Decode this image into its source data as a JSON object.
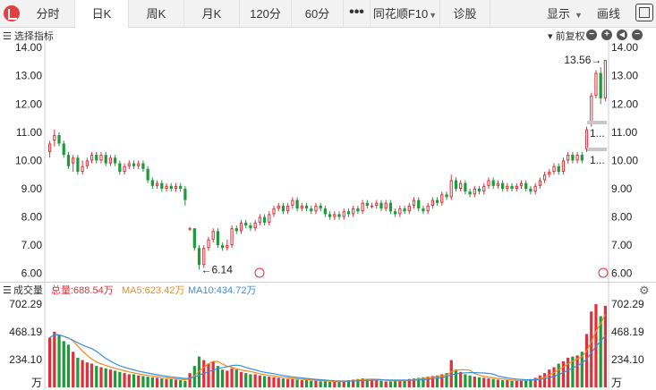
{
  "tabs": [
    {
      "label": "分时"
    },
    {
      "label": "日K"
    },
    {
      "label": "周K"
    },
    {
      "label": "月K"
    },
    {
      "label": "120分"
    },
    {
      "label": "60分"
    }
  ],
  "toolbar": {
    "more_label": "•••",
    "plugin_label": "同花顺F10",
    "diagnose_label": "诊股",
    "display_label": "显示",
    "draw_label": "画线"
  },
  "indicator_bar": {
    "select_label": "选择指标",
    "adjust_label": "前复权"
  },
  "volume_bar": {
    "title": "成交量",
    "total": "总量:688.54万",
    "ma5": "MA5:623.42万",
    "ma10": "MA10:434.72万"
  },
  "colors": {
    "up": "#e0303a",
    "down": "#1e9a3a",
    "ma5": "#f08a1c",
    "ma10": "#3a8fd8"
  },
  "chart_data": {
    "type": "candlestick",
    "price_axis": {
      "ticks": [
        "14.00",
        "13.00",
        "12.00",
        "11.00",
        "10.00",
        "9.00",
        "8.00",
        "7.00",
        "6.00"
      ],
      "ylim": [
        5.8,
        14.1
      ]
    },
    "volume_axis": {
      "ticks": [
        "702.29",
        "468.19",
        "234.10"
      ],
      "unit": "万"
    },
    "annotations": {
      "high_label": "13.56→",
      "low_label": "←6.14",
      "marker_label": "1..."
    },
    "candles": [
      [
        10.3,
        10.6,
        10.1,
        10.7
      ],
      [
        10.7,
        10.9,
        10.5,
        11.1
      ],
      [
        10.9,
        10.6,
        10.5,
        11.0
      ],
      [
        10.6,
        10.2,
        10.1,
        10.7
      ],
      [
        10.2,
        9.8,
        9.7,
        10.3
      ],
      [
        9.9,
        10.1,
        9.6,
        10.2
      ],
      [
        10.1,
        9.6,
        9.5,
        10.2
      ],
      [
        9.6,
        9.8,
        9.5,
        10.0
      ],
      [
        9.8,
        10.0,
        9.7,
        10.1
      ],
      [
        10.0,
        10.2,
        9.9,
        10.3
      ],
      [
        10.2,
        10.0,
        9.9,
        10.3
      ],
      [
        10.0,
        10.2,
        9.9,
        10.3
      ],
      [
        10.2,
        9.9,
        9.8,
        10.3
      ],
      [
        9.9,
        10.1,
        9.8,
        10.2
      ],
      [
        10.1,
        9.9,
        9.8,
        10.2
      ],
      [
        9.9,
        9.6,
        9.5,
        10.0
      ],
      [
        9.6,
        9.8,
        9.5,
        9.9
      ],
      [
        9.8,
        9.9,
        9.7,
        10.0
      ],
      [
        9.9,
        9.8,
        9.7,
        10.0
      ],
      [
        9.8,
        9.9,
        9.7,
        10.0
      ],
      [
        9.9,
        9.7,
        9.6,
        10.0
      ],
      [
        9.7,
        9.3,
        9.2,
        9.8
      ],
      [
        9.3,
        9.1,
        9.0,
        9.4
      ],
      [
        9.1,
        9.2,
        9.0,
        9.3
      ],
      [
        9.2,
        9.0,
        8.9,
        9.3
      ],
      [
        9.0,
        9.1,
        8.9,
        9.2
      ],
      [
        9.1,
        9.0,
        8.9,
        9.2
      ],
      [
        9.0,
        9.1,
        8.9,
        9.2
      ],
      [
        9.1,
        9.0,
        8.9,
        9.2
      ],
      [
        9.0,
        8.6,
        8.4,
        9.1
      ],
      [
        7.6,
        7.6,
        7.5,
        7.65
      ],
      [
        7.6,
        6.9,
        6.8,
        7.6
      ],
      [
        6.9,
        6.3,
        6.14,
        7.0
      ],
      [
        6.3,
        6.9,
        6.2,
        7.0
      ],
      [
        6.9,
        7.2,
        6.8,
        7.3
      ],
      [
        7.2,
        7.5,
        7.1,
        7.6
      ],
      [
        7.5,
        7.0,
        6.9,
        7.6
      ],
      [
        7.0,
        6.9,
        6.8,
        7.1
      ],
      [
        6.9,
        7.0,
        6.8,
        7.2
      ],
      [
        7.0,
        7.6,
        6.9,
        7.7
      ],
      [
        7.6,
        7.5,
        7.4,
        7.7
      ],
      [
        7.5,
        7.8,
        7.4,
        7.9
      ],
      [
        7.8,
        7.7,
        7.6,
        7.9
      ],
      [
        7.7,
        7.6,
        7.5,
        7.8
      ],
      [
        7.6,
        7.8,
        7.5,
        7.9
      ],
      [
        7.8,
        8.0,
        7.7,
        8.1
      ],
      [
        8.0,
        7.8,
        7.7,
        8.1
      ],
      [
        7.8,
        8.1,
        7.7,
        8.2
      ],
      [
        8.1,
        8.3,
        8.0,
        8.4
      ],
      [
        8.3,
        8.4,
        8.2,
        8.5
      ],
      [
        8.4,
        8.2,
        8.1,
        8.5
      ],
      [
        8.2,
        8.4,
        8.1,
        8.5
      ],
      [
        8.4,
        8.6,
        8.3,
        8.7
      ],
      [
        8.6,
        8.3,
        8.2,
        8.7
      ],
      [
        8.3,
        8.4,
        8.2,
        8.5
      ],
      [
        8.4,
        8.3,
        8.2,
        8.5
      ],
      [
        8.3,
        8.2,
        8.1,
        8.4
      ],
      [
        8.2,
        8.4,
        8.1,
        8.5
      ],
      [
        8.4,
        8.3,
        8.2,
        8.5
      ],
      [
        8.3,
        8.1,
        8.0,
        8.4
      ],
      [
        8.1,
        8.0,
        7.9,
        8.2
      ],
      [
        8.0,
        8.1,
        7.9,
        8.2
      ],
      [
        8.1,
        8.0,
        7.9,
        8.2
      ],
      [
        8.0,
        8.2,
        7.9,
        8.3
      ],
      [
        8.2,
        8.1,
        8.0,
        8.3
      ],
      [
        8.1,
        8.3,
        8.0,
        8.4
      ],
      [
        8.3,
        8.2,
        8.1,
        8.4
      ],
      [
        8.2,
        8.5,
        8.1,
        8.6
      ],
      [
        8.5,
        8.4,
        8.3,
        8.6
      ],
      [
        8.4,
        8.4,
        8.3,
        8.5
      ],
      [
        8.4,
        8.5,
        8.3,
        8.6
      ],
      [
        8.5,
        8.3,
        8.2,
        8.6
      ],
      [
        8.3,
        8.5,
        8.2,
        8.6
      ],
      [
        8.5,
        8.2,
        8.1,
        8.6
      ],
      [
        8.2,
        8.1,
        8.0,
        8.3
      ],
      [
        8.1,
        8.3,
        8.0,
        8.4
      ],
      [
        8.3,
        8.2,
        8.1,
        8.4
      ],
      [
        8.2,
        8.4,
        8.1,
        8.5
      ],
      [
        8.4,
        8.6,
        8.3,
        8.7
      ],
      [
        8.6,
        8.3,
        8.2,
        8.7
      ],
      [
        8.3,
        8.2,
        8.1,
        8.4
      ],
      [
        8.2,
        8.4,
        8.1,
        8.5
      ],
      [
        8.4,
        8.6,
        8.3,
        8.7
      ],
      [
        8.6,
        8.5,
        8.4,
        8.7
      ],
      [
        8.5,
        8.8,
        8.4,
        8.9
      ],
      [
        8.8,
        8.7,
        8.6,
        8.9
      ],
      [
        8.7,
        9.3,
        8.6,
        9.5
      ],
      [
        9.3,
        9.0,
        8.9,
        9.4
      ],
      [
        9.0,
        9.2,
        8.9,
        9.3
      ],
      [
        9.2,
        8.9,
        8.8,
        9.3
      ],
      [
        8.9,
        8.8,
        8.7,
        9.0
      ],
      [
        8.8,
        9.0,
        8.7,
        9.1
      ],
      [
        9.0,
        8.9,
        8.8,
        9.1
      ],
      [
        8.9,
        9.1,
        8.8,
        9.2
      ],
      [
        9.1,
        9.3,
        9.0,
        9.4
      ],
      [
        9.3,
        9.1,
        9.0,
        9.4
      ],
      [
        9.1,
        9.2,
        9.0,
        9.3
      ],
      [
        9.2,
        9.0,
        8.9,
        9.3
      ],
      [
        9.0,
        9.1,
        8.9,
        9.2
      ],
      [
        9.1,
        9.0,
        8.9,
        9.2
      ],
      [
        9.0,
        9.1,
        8.9,
        9.2
      ],
      [
        9.1,
        9.2,
        9.0,
        9.3
      ],
      [
        9.2,
        9.0,
        8.9,
        9.3
      ],
      [
        9.0,
        8.9,
        8.8,
        9.1
      ],
      [
        8.9,
        9.1,
        8.8,
        9.2
      ],
      [
        9.1,
        9.3,
        9.0,
        9.4
      ],
      [
        9.3,
        9.5,
        9.2,
        9.6
      ],
      [
        9.5,
        9.6,
        9.4,
        9.7
      ],
      [
        9.6,
        9.8,
        9.5,
        9.9
      ],
      [
        9.8,
        9.6,
        9.5,
        9.9
      ],
      [
        9.6,
        10.0,
        9.5,
        10.1
      ],
      [
        10.0,
        10.2,
        9.9,
        10.3
      ],
      [
        10.2,
        10.0,
        9.9,
        10.3
      ],
      [
        10.0,
        10.2,
        9.9,
        10.3
      ],
      [
        10.2,
        10.0,
        9.9,
        10.3
      ],
      [
        10.4,
        11.1,
        10.3,
        11.2
      ],
      [
        11.3,
        12.3,
        11.2,
        12.4
      ],
      [
        12.3,
        13.1,
        12.2,
        13.2
      ],
      [
        13.1,
        12.2,
        12.0,
        13.3
      ],
      [
        12.2,
        13.56,
        12.1,
        13.56
      ]
    ],
    "volumes": [
      420,
      470,
      440,
      390,
      360,
      300,
      250,
      230,
      210,
      200,
      180,
      170,
      160,
      150,
      140,
      130,
      120,
      110,
      110,
      100,
      95,
      90,
      85,
      80,
      75,
      70,
      70,
      65,
      60,
      55,
      120,
      180,
      260,
      230,
      200,
      220,
      180,
      150,
      140,
      160,
      150,
      130,
      120,
      110,
      110,
      100,
      95,
      90,
      85,
      80,
      75,
      70,
      70,
      65,
      60,
      60,
      55,
      55,
      50,
      50,
      45,
      45,
      50,
      55,
      60,
      65,
      70,
      75,
      70,
      65,
      60,
      55,
      50,
      50,
      55,
      60,
      65,
      70,
      75,
      80,
      85,
      90,
      95,
      100,
      110,
      120,
      230,
      150,
      130,
      110,
      100,
      90,
      85,
      80,
      75,
      70,
      65,
      60,
      60,
      55,
      55,
      60,
      65,
      70,
      80,
      100,
      120,
      150,
      170,
      200,
      220,
      250,
      260,
      270,
      300,
      450,
      640,
      702,
      600,
      688
    ]
  }
}
